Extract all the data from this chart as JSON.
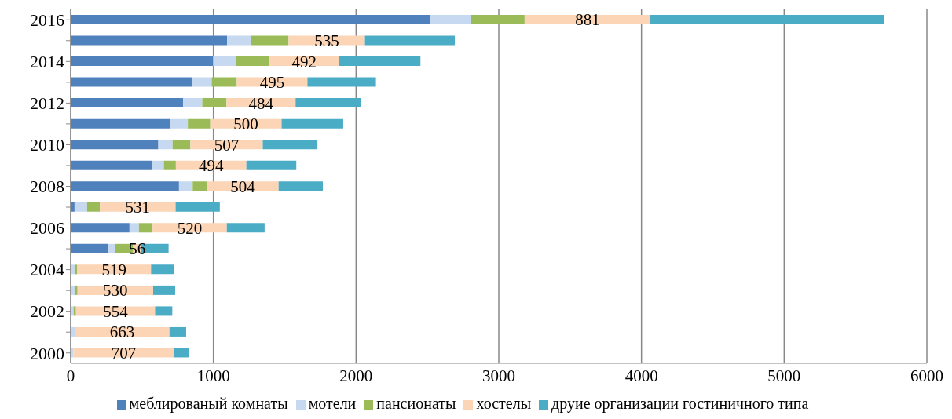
{
  "chart_data": {
    "type": "bar",
    "orientation": "horizontal",
    "stacked": true,
    "categories": [
      "2016",
      null,
      "2014",
      null,
      "2012",
      null,
      "2010",
      null,
      "2008",
      null,
      "2006",
      null,
      "2004",
      null,
      "2002",
      null,
      "2000"
    ],
    "series": [
      {
        "name": "меблированый комнаты",
        "color": "#4f81bd",
        "values": [
          2523,
          1096,
          998,
          851,
          788,
          697,
          614,
          569,
          759,
          27,
          412,
          265,
          0,
          0,
          0,
          0,
          0
        ]
      },
      {
        "name": "мотели",
        "color": "#c6d9f1",
        "values": [
          281,
          167,
          159,
          137,
          134,
          124,
          100,
          84,
          96,
          88,
          66,
          48,
          27,
          27,
          20,
          29,
          18
        ]
      },
      {
        "name": "пансионаты",
        "color": "#9bbb59",
        "values": [
          377,
          264,
          233,
          176,
          170,
          157,
          125,
          84,
          98,
          89,
          96,
          125,
          17,
          21,
          17,
          0,
          0
        ]
      },
      {
        "name": "хостелы",
        "color": "#fbd5b5",
        "values": [
          881,
          535,
          492,
          495,
          484,
          500,
          507,
          494,
          504,
          531,
          520,
          56,
          519,
          530,
          554,
          663,
          707
        ],
        "value_labels": [
          "881",
          "535",
          "492",
          "495",
          "484",
          "500",
          "507",
          "494",
          "504",
          "531",
          "520",
          "56",
          "519",
          "530",
          "554",
          "663",
          "707"
        ]
      },
      {
        "name": "друие организации гостиничного типа",
        "color": "#4bacc6",
        "values": [
          1637,
          630,
          569,
          480,
          459,
          432,
          383,
          350,
          310,
          310,
          265,
          192,
          162,
          154,
          121,
          117,
          104
        ]
      }
    ],
    "xlim": [
      0,
      6000
    ],
    "xticks": [
      0,
      1000,
      2000,
      3000,
      4000,
      5000,
      6000
    ],
    "grid": "x",
    "legend": "bottom"
  }
}
